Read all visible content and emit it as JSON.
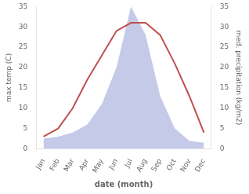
{
  "chart_data": {
    "type": "line",
    "categories": [
      "Jan",
      "Feb",
      "Mar",
      "Apr",
      "May",
      "Jun",
      "Jul",
      "Aug",
      "Sep",
      "Oct",
      "Nov",
      "Dec"
    ],
    "xlabel": "date (month)",
    "ylabel": "max temp (C)",
    "y2label": "med. precipitation (kg/m2)",
    "series": [
      {
        "type": "area",
        "color": "#c5cae9",
        "axis": "y2",
        "values": [
          2.5,
          3,
          4,
          6,
          11,
          20,
          35,
          28,
          13,
          5,
          2,
          1.5
        ]
      },
      {
        "type": "line",
        "color": "#c0504d",
        "values": [
          3,
          5,
          10,
          17,
          23,
          29,
          31,
          31,
          28,
          21,
          13,
          4
        ]
      }
    ],
    "ylim": [
      0,
      35
    ],
    "yticks": [
      0,
      5,
      10,
      15,
      20,
      25,
      30,
      35
    ],
    "y2lim": [
      0,
      35
    ],
    "y2ticks": [
      0,
      5,
      10,
      15,
      20,
      25,
      30,
      35
    ],
    "grid": false
  }
}
